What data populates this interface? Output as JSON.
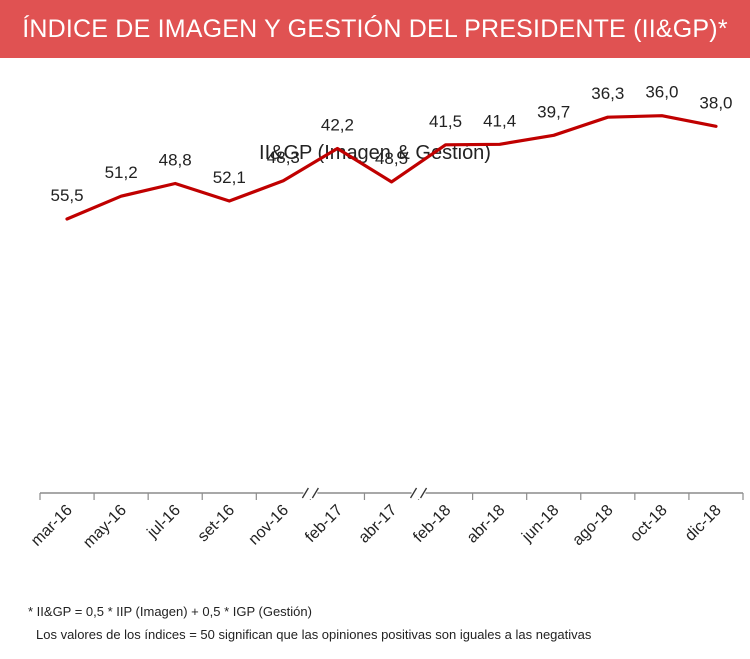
{
  "header": {
    "title": "ÍNDICE DE IMAGEN Y GESTIÓN DEL PRESIDENTE (II&GP)*",
    "background": "#e05252"
  },
  "chart_data": {
    "type": "line",
    "title": "II&GP (Imagen & Gestión)",
    "categories": [
      "mar-16",
      "may-16",
      "jul-16",
      "set-16",
      "nov-16",
      "feb-17",
      "abr-17",
      "feb-18",
      "abr-18",
      "jun-18",
      "ago-18",
      "oct-18",
      "dic-18"
    ],
    "series": [
      {
        "values": [
          55.5,
          51.2,
          48.8,
          52.1,
          48.3,
          42.2,
          48.5,
          41.5,
          41.4,
          39.7,
          36.3,
          36.0,
          38.0
        ],
        "labels": [
          "55,5",
          "51,2",
          "48,8",
          "52,1",
          "48,3",
          "42,2",
          "48,5",
          "41,5",
          "41,4",
          "39,7",
          "36,3",
          "36,0",
          "38,0"
        ],
        "color": "#c00000"
      }
    ],
    "axis_breaks_after": [
      "nov-16",
      "abr-17"
    ],
    "grid": false,
    "legend": "none"
  },
  "footnotes": {
    "line1": "* II&GP = 0,5 * IIP (Imagen) + 0,5 * IGP (Gestión)",
    "line2": "Los valores de los índices = 50 significan que las opiniones positivas son iguales a las negativas"
  }
}
